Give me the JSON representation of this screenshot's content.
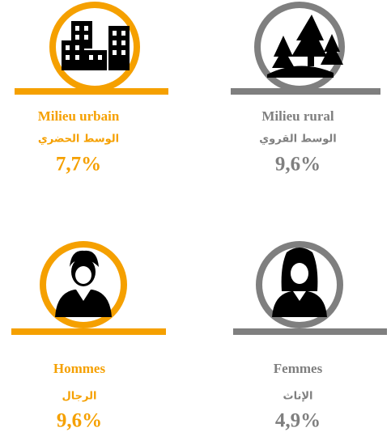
{
  "items": [
    {
      "label_fr": "Milieu urbain",
      "label_ar": "الوسط الحضري",
      "value": "7,7%"
    },
    {
      "label_fr": "Milieu rural",
      "label_ar": "الوسط القروي",
      "value": "9,6%"
    },
    {
      "label_fr": "Hommes",
      "label_ar": "الرجال",
      "value": "9,6%"
    },
    {
      "label_fr": "Femmes",
      "label_ar": "الإناث",
      "value": "4,9%"
    }
  ]
}
